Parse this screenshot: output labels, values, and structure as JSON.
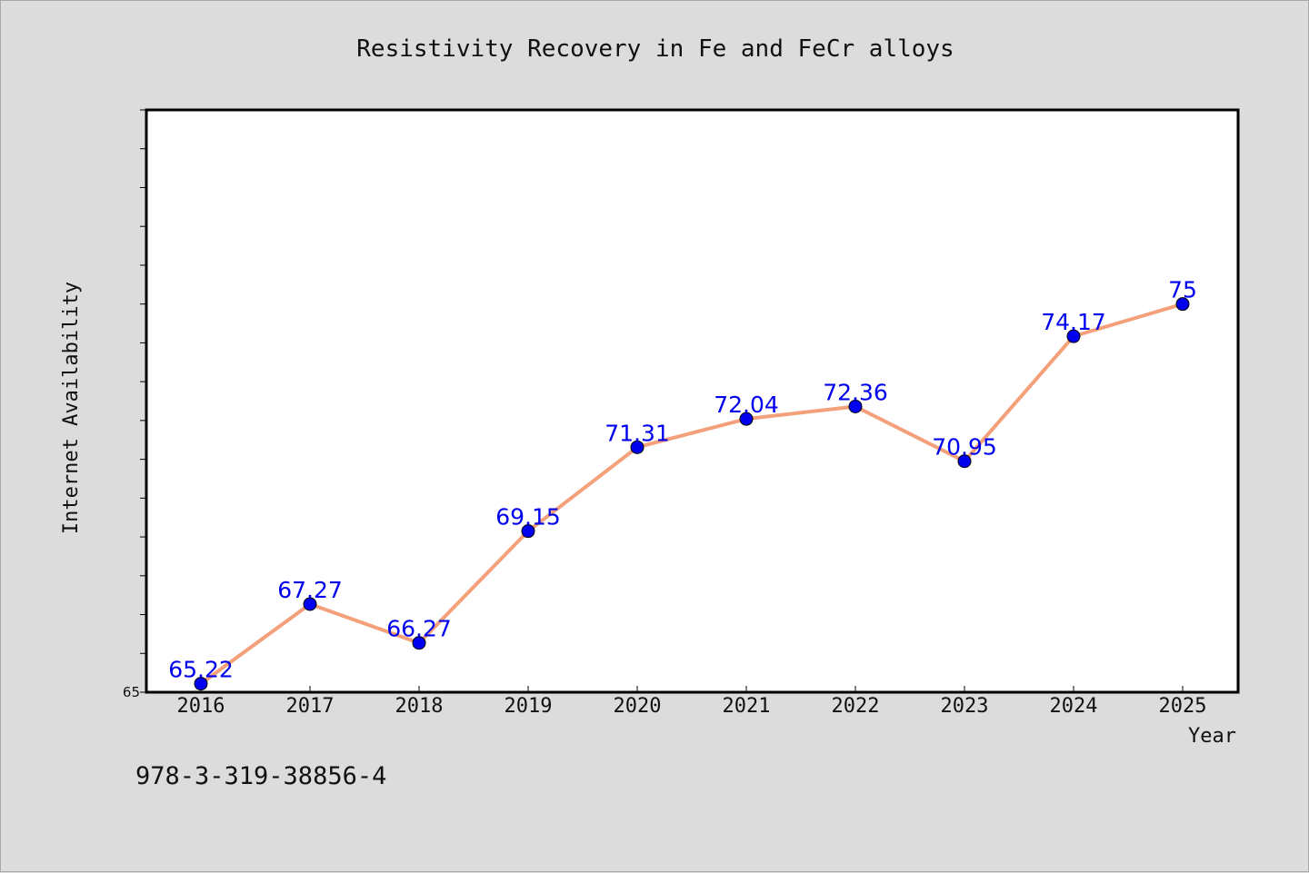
{
  "chart_data": {
    "type": "line",
    "title": "Resistivity Recovery in Fe and FeCr alloys",
    "xlabel": "Year",
    "ylabel": "Internet Availability",
    "categories": [
      "2016",
      "2017",
      "2018",
      "2019",
      "2020",
      "2021",
      "2022",
      "2023",
      "2024",
      "2025"
    ],
    "series": [
      {
        "values": [
          65.22,
          67.27,
          66.27,
          69.15,
          71.31,
          72.04,
          72.36,
          70.95,
          74.17,
          75
        ],
        "labels": [
          "65.22",
          "67.27",
          "66.27",
          "69.15",
          "71.31",
          "72.04",
          "72.36",
          "70.95",
          "74.17",
          "75"
        ],
        "line_color": "#f4a07a",
        "marker_color": "#0000ee",
        "label_color": "#0000ee"
      }
    ],
    "ylim": [
      65,
      80
    ],
    "ytick_step": 1,
    "yticks_labeled": [
      "65"
    ],
    "grid": false,
    "legend": "none",
    "background": "#ffffff",
    "figure_background": "#dcdcdc"
  },
  "footer": {
    "text": "978-3-319-38856-4"
  }
}
